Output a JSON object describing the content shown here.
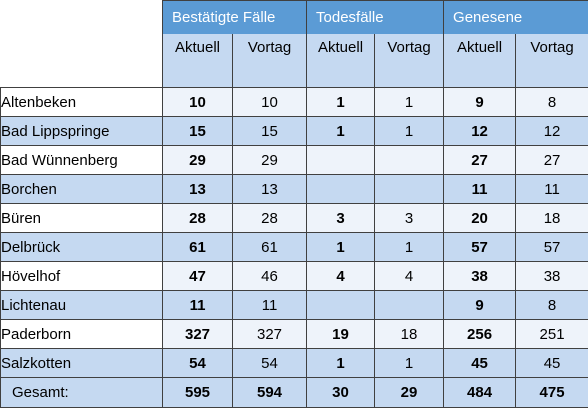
{
  "header": {
    "groups": [
      "Bestätigte Fälle",
      "Todesfälle",
      "Genesene"
    ],
    "subs": [
      "Aktuell",
      "Vortag",
      "Aktuell",
      "Vortag",
      "Aktuell",
      "Vortag"
    ]
  },
  "rows": [
    {
      "name": "Altenbeken",
      "cells": [
        "10",
        "10",
        "1",
        "1",
        "9",
        "8"
      ]
    },
    {
      "name": "Bad Lippspringe",
      "cells": [
        "15",
        "15",
        "1",
        "1",
        "12",
        "12"
      ]
    },
    {
      "name": "Bad Wünnenberg",
      "cells": [
        "29",
        "29",
        "",
        "",
        "27",
        "27"
      ]
    },
    {
      "name": "Borchen",
      "cells": [
        "13",
        "13",
        "",
        "",
        "11",
        "11"
      ]
    },
    {
      "name": "Büren",
      "cells": [
        "28",
        "28",
        "3",
        "3",
        "20",
        "18"
      ]
    },
    {
      "name": "Delbrück",
      "cells": [
        "61",
        "61",
        "1",
        "1",
        "57",
        "57"
      ]
    },
    {
      "name": "Hövelhof",
      "cells": [
        "47",
        "46",
        "4",
        "4",
        "38",
        "38"
      ]
    },
    {
      "name": "Lichtenau",
      "cells": [
        "11",
        "11",
        "",
        "",
        "9",
        "8"
      ]
    },
    {
      "name": "Paderborn",
      "cells": [
        "327",
        "327",
        "19",
        "18",
        "256",
        "251"
      ]
    },
    {
      "name": "Salzkotten",
      "cells": [
        "54",
        "54",
        "1",
        "1",
        "45",
        "45"
      ]
    }
  ],
  "total": {
    "name": "Gesamt:",
    "cells": [
      "595",
      "594",
      "30",
      "29",
      "484",
      "475"
    ]
  },
  "colors": {
    "group_header_bg": "#5b9bd5",
    "sub_header_bg": "#c5d9f1",
    "row_alt_bg": "#c5d9f1",
    "row_light_bg": "#eef3fa"
  }
}
